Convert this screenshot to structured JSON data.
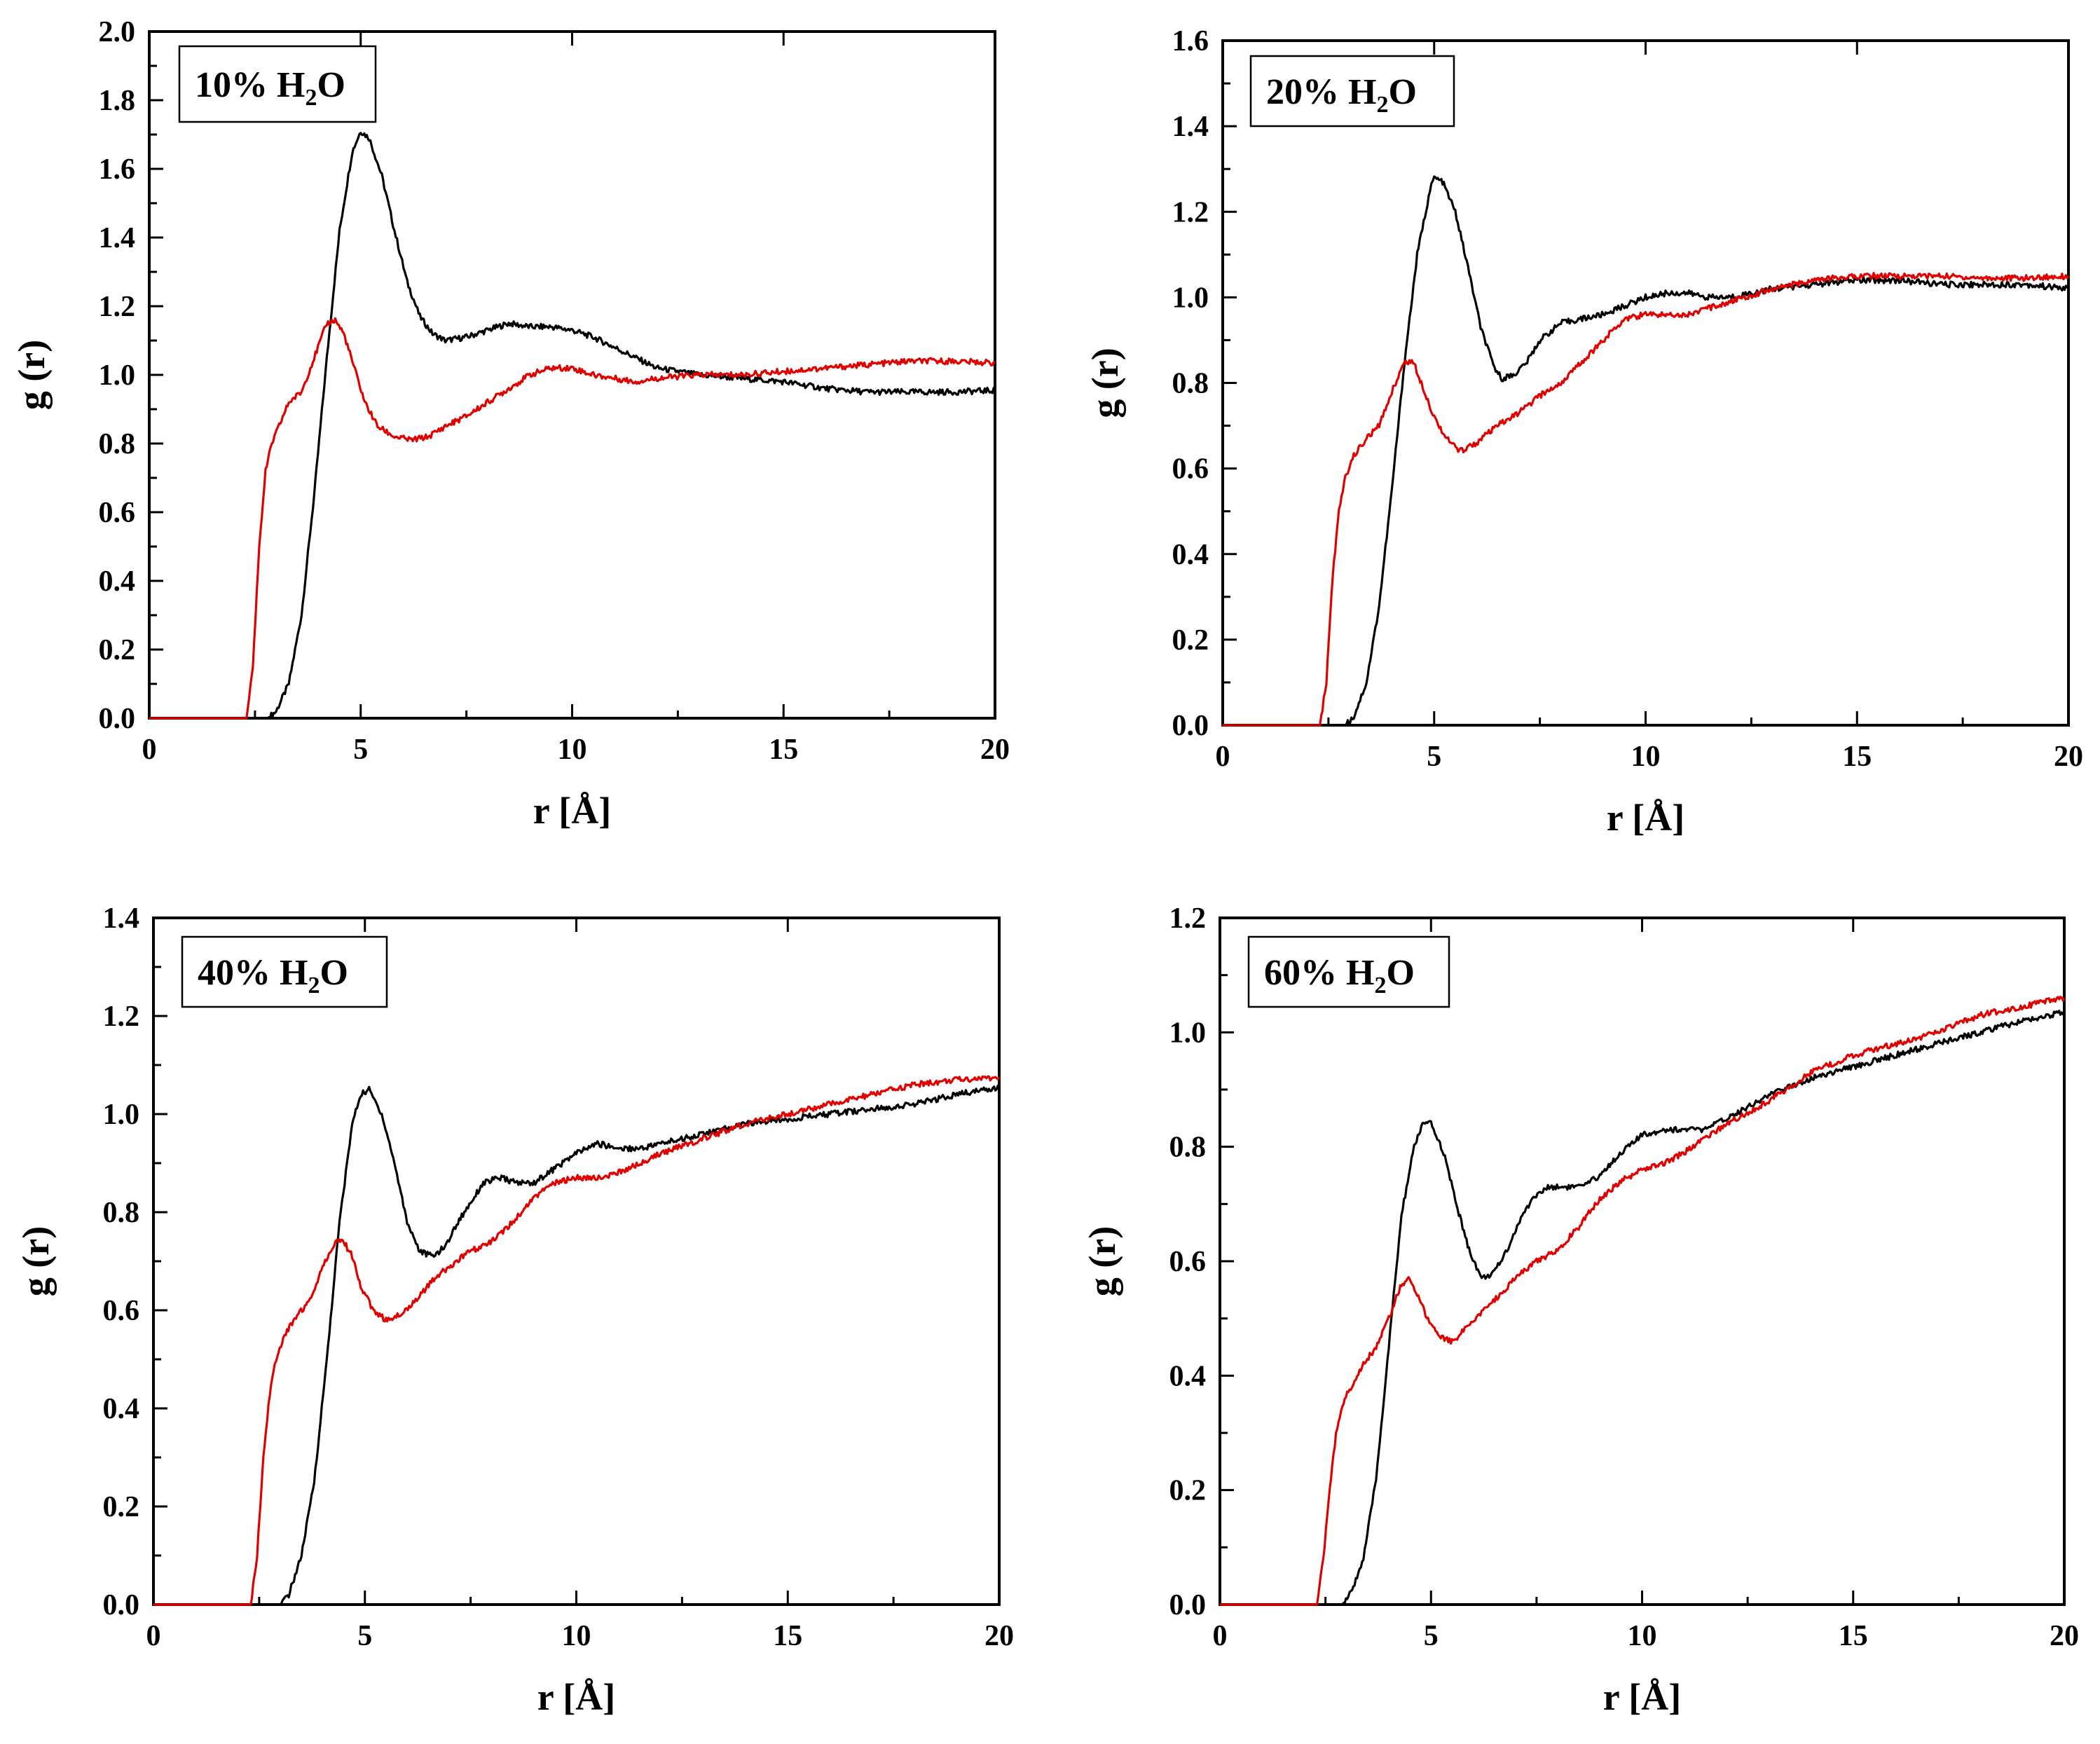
{
  "figure": {
    "series_colors": {
      "black": "#000000",
      "red": "#e00000"
    }
  },
  "chart_data": [
    {
      "type": "line",
      "label_main": "10% H",
      "label_sub": "2",
      "label_end": "O",
      "xlabel": "r [Å]",
      "ylabel": "g (r)",
      "xlim": [
        0,
        20
      ],
      "ylim": [
        0,
        2.0
      ],
      "xticks": [
        "0",
        "5",
        "10",
        "15",
        "20"
      ],
      "yticks": [
        "0.0",
        "0.2",
        "0.4",
        "0.6",
        "0.8",
        "1.0",
        "1.2",
        "1.4",
        "1.6",
        "1.8",
        "2.0"
      ],
      "series": [
        {
          "name": "black",
          "color": "#000000",
          "x": [
            0,
            2.8,
            3.0,
            3.3,
            3.6,
            3.9,
            4.2,
            4.5,
            4.8,
            5.0,
            5.2,
            5.5,
            5.8,
            6.1,
            6.4,
            6.7,
            7.0,
            7.5,
            8.0,
            8.5,
            9.0,
            9.5,
            10.0,
            10.5,
            11.0,
            12.0,
            13.0,
            14.0,
            15.0,
            16.0,
            17.0,
            18.0,
            19.0,
            20.0
          ],
          "y": [
            0,
            0,
            0.02,
            0.1,
            0.3,
            0.65,
            1.05,
            1.42,
            1.65,
            1.71,
            1.69,
            1.58,
            1.42,
            1.27,
            1.17,
            1.12,
            1.1,
            1.11,
            1.13,
            1.15,
            1.14,
            1.14,
            1.13,
            1.11,
            1.08,
            1.02,
            1.0,
            0.99,
            0.98,
            0.96,
            0.95,
            0.95,
            0.95,
            0.955
          ]
        },
        {
          "name": "red",
          "color": "#e00000",
          "x": [
            0,
            2.3,
            2.45,
            2.6,
            2.75,
            2.9,
            3.1,
            3.3,
            3.6,
            3.9,
            4.2,
            4.4,
            4.6,
            4.8,
            5.1,
            5.4,
            5.8,
            6.2,
            6.6,
            7.0,
            7.5,
            8.0,
            8.5,
            9.0,
            9.5,
            10.0,
            10.5,
            11.0,
            11.5,
            12.0,
            13.0,
            14.0,
            15.0,
            16.0,
            17.0,
            18.0,
            19.0,
            20.0
          ],
          "y": [
            0,
            0,
            0.15,
            0.5,
            0.72,
            0.8,
            0.86,
            0.92,
            0.95,
            1.05,
            1.15,
            1.16,
            1.12,
            1.04,
            0.92,
            0.85,
            0.82,
            0.81,
            0.82,
            0.85,
            0.88,
            0.92,
            0.96,
            1.0,
            1.02,
            1.02,
            1.0,
            0.99,
            0.98,
            0.99,
            1.0,
            1.0,
            1.01,
            1.02,
            1.03,
            1.04,
            1.04,
            1.035
          ]
        }
      ]
    },
    {
      "type": "line",
      "label_main": "20% H",
      "label_sub": "2",
      "label_end": "O",
      "xlabel": "r [Å]",
      "ylabel": "g (r)",
      "xlim": [
        0,
        20
      ],
      "ylim": [
        0,
        1.6
      ],
      "xticks": [
        "0",
        "5",
        "10",
        "15",
        "20"
      ],
      "yticks": [
        "0.0",
        "0.2",
        "0.4",
        "0.6",
        "0.8",
        "1.0",
        "1.2",
        "1.4",
        "1.6"
      ],
      "series": [
        {
          "name": "black",
          "color": "#000000",
          "x": [
            0,
            2.9,
            3.1,
            3.4,
            3.7,
            4.0,
            4.3,
            4.6,
            4.9,
            5.0,
            5.2,
            5.5,
            5.8,
            6.1,
            6.4,
            6.6,
            6.9,
            7.2,
            7.5,
            8.0,
            8.5,
            9.0,
            9.5,
            10.0,
            10.5,
            11.0,
            11.5,
            12.0,
            13.0,
            14.0,
            15.0,
            16.0,
            17.0,
            18.0,
            19.0,
            20.0
          ],
          "y": [
            0,
            0,
            0.02,
            0.1,
            0.28,
            0.55,
            0.85,
            1.1,
            1.25,
            1.28,
            1.27,
            1.2,
            1.07,
            0.93,
            0.84,
            0.81,
            0.82,
            0.85,
            0.9,
            0.94,
            0.95,
            0.96,
            0.98,
            1.0,
            1.01,
            1.01,
            1.0,
            1.0,
            1.02,
            1.03,
            1.04,
            1.04,
            1.03,
            1.03,
            1.03,
            1.02
          ]
        },
        {
          "name": "red",
          "color": "#e00000",
          "x": [
            0,
            2.3,
            2.45,
            2.6,
            2.75,
            2.9,
            3.1,
            3.4,
            3.7,
            4.0,
            4.3,
            4.5,
            4.7,
            5.0,
            5.3,
            5.6,
            6.0,
            6.5,
            7.0,
            7.5,
            8.0,
            8.5,
            9.0,
            9.5,
            10.0,
            10.5,
            11.0,
            12.0,
            13.0,
            14.0,
            15.0,
            16.0,
            17.0,
            18.0,
            19.0,
            20.0
          ],
          "y": [
            0,
            0,
            0.1,
            0.35,
            0.5,
            0.58,
            0.63,
            0.67,
            0.7,
            0.78,
            0.85,
            0.85,
            0.8,
            0.72,
            0.67,
            0.64,
            0.66,
            0.7,
            0.73,
            0.77,
            0.8,
            0.85,
            0.9,
            0.95,
            0.96,
            0.96,
            0.96,
            0.99,
            1.02,
            1.04,
            1.05,
            1.05,
            1.05,
            1.045,
            1.045,
            1.05
          ]
        }
      ]
    },
    {
      "type": "line",
      "label_main": "40% H",
      "label_sub": "2",
      "label_end": "O",
      "xlabel": "r [Å]",
      "ylabel": "g (r)",
      "xlim": [
        0,
        20
      ],
      "ylim": [
        0,
        1.4
      ],
      "xticks": [
        "0",
        "5",
        "10",
        "15",
        "20"
      ],
      "yticks": [
        "0.0",
        "0.2",
        "0.4",
        "0.6",
        "0.8",
        "1.0",
        "1.2",
        "1.4"
      ],
      "series": [
        {
          "name": "black",
          "color": "#000000",
          "x": [
            0,
            3.0,
            3.2,
            3.5,
            3.8,
            4.1,
            4.4,
            4.7,
            4.9,
            5.1,
            5.4,
            5.7,
            6.0,
            6.3,
            6.6,
            6.9,
            7.2,
            7.5,
            7.8,
            8.2,
            8.6,
            9.0,
            9.5,
            10.0,
            10.5,
            11.0,
            11.5,
            12.0,
            13.0,
            14.0,
            15.0,
            16.0,
            17.0,
            18.0,
            19.0,
            20.0
          ],
          "y": [
            0,
            0,
            0.02,
            0.1,
            0.25,
            0.5,
            0.78,
            0.98,
            1.04,
            1.05,
            1.0,
            0.9,
            0.78,
            0.72,
            0.71,
            0.73,
            0.78,
            0.82,
            0.86,
            0.87,
            0.86,
            0.86,
            0.89,
            0.92,
            0.94,
            0.93,
            0.93,
            0.94,
            0.96,
            0.98,
            0.99,
            1.0,
            1.01,
            1.02,
            1.04,
            1.055
          ]
        },
        {
          "name": "red",
          "color": "#e00000",
          "x": [
            0,
            2.3,
            2.45,
            2.6,
            2.75,
            2.9,
            3.1,
            3.4,
            3.7,
            4.0,
            4.3,
            4.5,
            4.7,
            4.9,
            5.2,
            5.5,
            5.8,
            6.2,
            6.6,
            7.0,
            7.5,
            8.0,
            8.5,
            9.0,
            9.5,
            10.0,
            10.5,
            11.0,
            12.0,
            13.0,
            14.0,
            15.0,
            16.0,
            17.0,
            18.0,
            19.0,
            20.0
          ],
          "y": [
            0,
            0,
            0.1,
            0.3,
            0.43,
            0.5,
            0.55,
            0.59,
            0.62,
            0.69,
            0.74,
            0.74,
            0.71,
            0.65,
            0.6,
            0.58,
            0.59,
            0.62,
            0.66,
            0.69,
            0.72,
            0.74,
            0.78,
            0.83,
            0.86,
            0.87,
            0.87,
            0.88,
            0.92,
            0.95,
            0.98,
            1.0,
            1.02,
            1.04,
            1.06,
            1.07,
            1.075
          ]
        }
      ]
    },
    {
      "type": "line",
      "label_main": "60% H",
      "label_sub": "2",
      "label_end": "O",
      "xlabel": "r [Å]",
      "ylabel": "g (r)",
      "xlim": [
        0,
        20
      ],
      "ylim": [
        0,
        1.2
      ],
      "xticks": [
        "0",
        "5",
        "10",
        "15",
        "20"
      ],
      "yticks": [
        "0.0",
        "0.2",
        "0.4",
        "0.6",
        "0.8",
        "1.0",
        "1.2"
      ],
      "series": [
        {
          "name": "black",
          "color": "#000000",
          "x": [
            0,
            2.9,
            3.1,
            3.4,
            3.7,
            4.0,
            4.3,
            4.6,
            4.8,
            5.0,
            5.3,
            5.6,
            5.9,
            6.2,
            6.5,
            6.8,
            7.1,
            7.4,
            7.8,
            8.2,
            8.6,
            9.0,
            9.5,
            10.0,
            10.5,
            11.0,
            11.5,
            12.0,
            13.0,
            14.0,
            15.0,
            16.0,
            17.0,
            18.0,
            19.0,
            20.0
          ],
          "y": [
            0,
            0,
            0.02,
            0.08,
            0.22,
            0.45,
            0.68,
            0.8,
            0.84,
            0.84,
            0.79,
            0.7,
            0.62,
            0.57,
            0.58,
            0.62,
            0.67,
            0.71,
            0.73,
            0.73,
            0.73,
            0.75,
            0.79,
            0.82,
            0.83,
            0.83,
            0.83,
            0.85,
            0.89,
            0.92,
            0.94,
            0.96,
            0.98,
            1.0,
            1.02,
            1.035
          ]
        },
        {
          "name": "red",
          "color": "#e00000",
          "x": [
            0,
            2.3,
            2.45,
            2.6,
            2.75,
            2.9,
            3.1,
            3.4,
            3.7,
            4.0,
            4.3,
            4.5,
            4.7,
            4.9,
            5.2,
            5.5,
            5.8,
            6.2,
            6.6,
            7.0,
            7.5,
            8.0,
            8.5,
            9.0,
            9.5,
            10.0,
            10.5,
            11.0,
            12.0,
            13.0,
            14.0,
            15.0,
            16.0,
            17.0,
            18.0,
            19.0,
            20.0
          ],
          "y": [
            0,
            0,
            0.08,
            0.2,
            0.3,
            0.35,
            0.38,
            0.42,
            0.45,
            0.5,
            0.56,
            0.57,
            0.54,
            0.5,
            0.47,
            0.46,
            0.48,
            0.51,
            0.54,
            0.57,
            0.6,
            0.62,
            0.66,
            0.71,
            0.74,
            0.76,
            0.77,
            0.79,
            0.84,
            0.88,
            0.93,
            0.96,
            0.98,
            1.0,
            1.03,
            1.045,
            1.06
          ]
        }
      ]
    }
  ]
}
